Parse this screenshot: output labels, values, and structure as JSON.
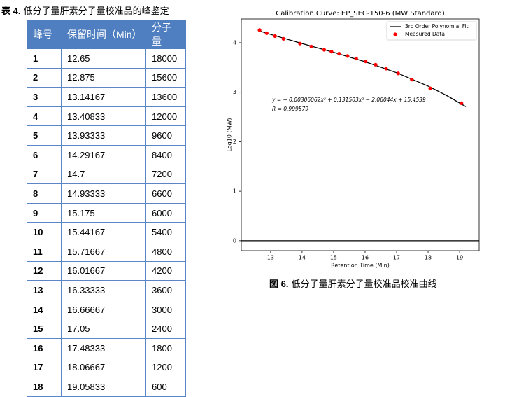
{
  "table": {
    "caption_label": "表 4.",
    "caption": "低分子量肝素分子量校准品的峰鉴定",
    "header": [
      "峰号",
      "保留时间（Min）",
      "分子量"
    ],
    "rows": [
      [
        "1",
        "12.65",
        "18000"
      ],
      [
        "2",
        "12.875",
        "15600"
      ],
      [
        "3",
        "13.14167",
        "13600"
      ],
      [
        "4",
        "13.40833",
        "12000"
      ],
      [
        "5",
        "13.93333",
        "9600"
      ],
      [
        "6",
        "14.29167",
        "8400"
      ],
      [
        "7",
        "14.7",
        "7200"
      ],
      [
        "8",
        "14.93333",
        "6600"
      ],
      [
        "9",
        "15.175",
        "6000"
      ],
      [
        "10",
        "15.44167",
        "5400"
      ],
      [
        "11",
        "15.71667",
        "4800"
      ],
      [
        "12",
        "16.01667",
        "4200"
      ],
      [
        "13",
        "16.33333",
        "3600"
      ],
      [
        "14",
        "16.66667",
        "3000"
      ],
      [
        "15",
        "17.05",
        "2400"
      ],
      [
        "16",
        "17.48333",
        "1800"
      ],
      [
        "17",
        "18.06667",
        "1200"
      ],
      [
        "18",
        "19.05833",
        "600"
      ]
    ]
  },
  "figure": {
    "caption_label": "图 6.",
    "caption": "低分子量肝素分子量校准品校准曲线"
  },
  "chart_data": {
    "type": "scatter",
    "title": "Calibration Curve: EP_SEC-150-6 (MW Standard)",
    "x_label": "Retention Time (Min)",
    "y_label": "Log10 (MW)",
    "annotations": [
      "y = − 0.00306062x³ + 0.131503x² − 2.06044x + 15.4539",
      "R = 0.999579"
    ],
    "xlim": [
      12.07,
      19.62
    ],
    "ylim": [
      -0.2,
      4.48
    ],
    "xticks": [
      13,
      14,
      15,
      16,
      17,
      18,
      19
    ],
    "yticks": [
      0,
      1,
      2,
      3,
      4
    ],
    "legend": "upper right",
    "series": [
      {
        "name": "3rd Order Polynomial Fit",
        "kind": "line",
        "color": "#000000",
        "x": [
          12.6,
          13,
          14,
          15,
          16,
          17,
          18,
          18.6,
          19.2
        ],
        "values": [
          4.247,
          4.168,
          3.984,
          3.806,
          3.615,
          3.394,
          3.124,
          2.93,
          2.708
        ]
      },
      {
        "name": "Measured Data",
        "kind": "points",
        "color": "#ff0000",
        "x": [
          12.65,
          12.875,
          13.14167,
          13.40833,
          13.93333,
          14.29167,
          14.7,
          14.93333,
          15.175,
          15.44167,
          15.71667,
          16.01667,
          16.33333,
          16.66667,
          17.05,
          17.48333,
          18.06667,
          19.05833
        ],
        "values": [
          4.2553,
          4.1931,
          4.1335,
          4.0792,
          3.9823,
          3.9243,
          3.8573,
          3.8195,
          3.7782,
          3.7324,
          3.6812,
          3.6232,
          3.5563,
          3.4771,
          3.3802,
          3.2553,
          3.0792,
          2.7782
        ]
      }
    ]
  }
}
